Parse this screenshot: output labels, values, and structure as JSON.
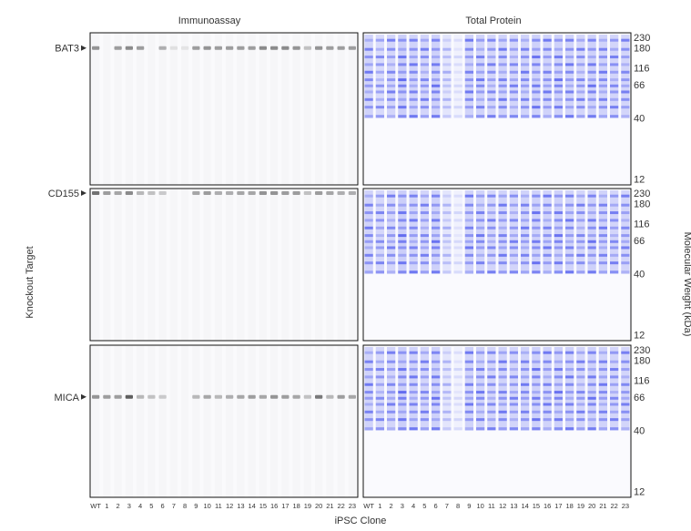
{
  "headers": {
    "left": "Immunoassay",
    "right": "Total Protein"
  },
  "axes": {
    "y_left": "Knockout Target",
    "y_right": "Molecular Weight (kDa)",
    "x": "iPSC Clone"
  },
  "lanes": [
    "WT",
    "1",
    "2",
    "3",
    "4",
    "5",
    "6",
    "7",
    "8",
    "9",
    "10",
    "11",
    "12",
    "13",
    "14",
    "15",
    "16",
    "17",
    "18",
    "19",
    "20",
    "21",
    "22",
    "23"
  ],
  "mw_markers": [
    230,
    180,
    116,
    66,
    40,
    12
  ],
  "colors": {
    "band": "#4a56ee",
    "immuno": "#444444",
    "frame": "#111111"
  },
  "rows": [
    {
      "target": "BAT3",
      "target_mw": 180,
      "immuno_intensity": [
        0.55,
        0,
        0.5,
        0.6,
        0.5,
        0,
        0.4,
        0.12,
        0.1,
        0.5,
        0.55,
        0.5,
        0.5,
        0.5,
        0.5,
        0.6,
        0.6,
        0.6,
        0.55,
        0.3,
        0.55,
        0.5,
        0.5,
        0.5
      ],
      "total_intensity": [
        0.85,
        0.7,
        0.8,
        0.95,
        0.85,
        0.8,
        0.9,
        0.45,
        0.2,
        0.85,
        0.85,
        0.8,
        0.85,
        0.8,
        0.85,
        0.9,
        0.85,
        0.9,
        0.85,
        0.8,
        0.9,
        0.85,
        0.8,
        0.8
      ]
    },
    {
      "target": "CD155",
      "target_mw": 230,
      "immuno_intensity": [
        0.75,
        0.5,
        0.45,
        0.6,
        0.35,
        0.3,
        0.25,
        0,
        0,
        0.45,
        0.5,
        0.4,
        0.4,
        0.45,
        0.45,
        0.55,
        0.55,
        0.5,
        0.5,
        0.3,
        0.5,
        0.45,
        0.4,
        0.4
      ],
      "total_intensity": [
        0.85,
        0.75,
        0.8,
        0.95,
        0.85,
        0.8,
        0.9,
        0.45,
        0.2,
        0.85,
        0.85,
        0.8,
        0.85,
        0.8,
        0.85,
        0.9,
        0.85,
        0.9,
        0.85,
        0.8,
        0.9,
        0.85,
        0.8,
        0.8
      ]
    },
    {
      "target": "MICA",
      "target_mw": 66,
      "immuno_intensity": [
        0.55,
        0.5,
        0.5,
        0.85,
        0.35,
        0.3,
        0.25,
        0,
        0,
        0.35,
        0.45,
        0.35,
        0.4,
        0.45,
        0.5,
        0.45,
        0.55,
        0.5,
        0.45,
        0.3,
        0.7,
        0.35,
        0.5,
        0.45
      ],
      "total_intensity": [
        0.85,
        0.75,
        0.8,
        0.95,
        0.85,
        0.8,
        0.9,
        0.45,
        0.2,
        0.85,
        0.85,
        0.8,
        0.85,
        0.8,
        0.85,
        0.9,
        0.85,
        0.9,
        0.85,
        0.8,
        0.9,
        0.85,
        0.8,
        0.8
      ]
    }
  ]
}
